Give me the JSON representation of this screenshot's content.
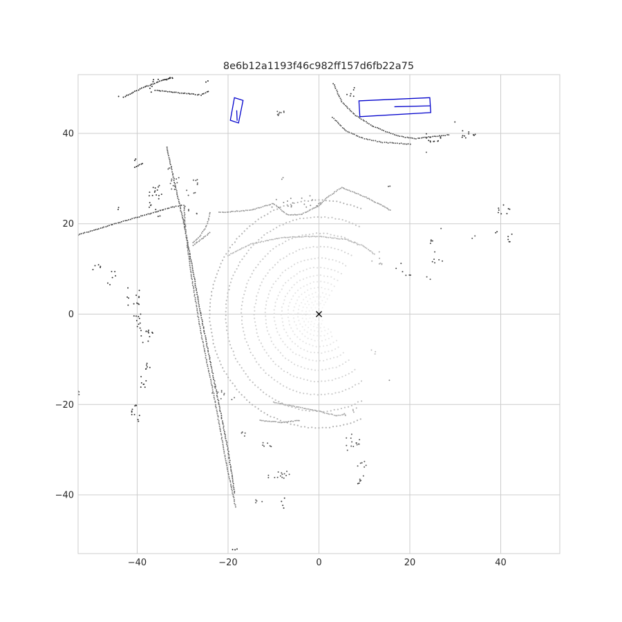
{
  "chart_data": {
    "type": "scatter",
    "title": "8e6b12a1193f46c982ff157d6fb22a75",
    "xlabel": "",
    "ylabel": "",
    "xlim": [
      -53,
      53
    ],
    "ylim": [
      -53,
      53
    ],
    "xticks": [
      -40,
      -20,
      0,
      20,
      40
    ],
    "yticks": [
      -40,
      -20,
      0,
      20,
      40
    ],
    "xtick_labels": [
      "−40",
      "−20",
      "0",
      "20",
      "40"
    ],
    "ytick_labels": [
      "−40",
      "−20",
      "0",
      "20",
      "40"
    ],
    "grid": true,
    "ego_marker": {
      "x": 0,
      "y": 0,
      "symbol": "x"
    },
    "box_color": "#0000cc",
    "boxes": [
      {
        "corners": [
          [
            -18.6,
            47.9
          ],
          [
            -16.7,
            47.3
          ],
          [
            -17.7,
            42.3
          ],
          [
            -19.5,
            42.9
          ]
        ],
        "heading_line": [
          [
            -18.1,
            45.1
          ],
          [
            -18.0,
            42.8
          ]
        ]
      },
      {
        "corners": [
          [
            8.8,
            47.2
          ],
          [
            24.4,
            47.9
          ],
          [
            24.6,
            44.6
          ],
          [
            9.0,
            43.7
          ]
        ],
        "heading_line": [
          [
            16.6,
            45.9
          ],
          [
            24.5,
            46.1
          ]
        ]
      }
    ],
    "rings": [
      {
        "r": 1.5,
        "gray": "#f4f4f4"
      },
      {
        "r": 2.2,
        "gray": "#f2f2f2"
      },
      {
        "r": 2.9,
        "gray": "#f0f0f0"
      },
      {
        "r": 3.7,
        "gray": "#eeeeee"
      },
      {
        "r": 4.6,
        "gray": "#ececec"
      },
      {
        "r": 5.6,
        "gray": "#e9e9e9"
      },
      {
        "r": 6.8,
        "gray": "#e6e6e6"
      },
      {
        "r": 8.2,
        "gray": "#e2e2e2"
      },
      {
        "r": 9.8,
        "gray": "#dedede"
      },
      {
        "r": 11.8,
        "gray": "#d9d9d9"
      },
      {
        "r": 14.2,
        "gray": "#d2d2d2"
      },
      {
        "r": 17.0,
        "gray": "#c9c9c9"
      },
      {
        "r": 20.5,
        "gray": "#bdbdbd"
      },
      {
        "r": 24.0,
        "gray": "#b0b0b0"
      }
    ],
    "ring_arc_deg": [
      60,
      305
    ],
    "ring_max_x": 9.5,
    "far_arcs": [
      {
        "points": [
          [
            -22,
            22.5
          ],
          [
            -15,
            23
          ],
          [
            -10,
            24.5
          ],
          [
            -7,
            22
          ],
          [
            -4,
            22
          ],
          [
            0,
            24
          ],
          [
            2,
            26
          ],
          [
            5,
            28
          ],
          [
            10,
            26
          ],
          [
            14,
            24
          ],
          [
            16,
            22.8
          ]
        ],
        "gray": "#9a9a9a"
      },
      {
        "points": [
          [
            -20,
            13
          ],
          [
            -15,
            15.5
          ],
          [
            -8,
            17
          ],
          [
            0,
            17.2
          ],
          [
            6,
            16.5
          ],
          [
            10,
            15
          ],
          [
            12.5,
            13
          ]
        ],
        "gray": "#b4b4b4"
      },
      {
        "points": [
          [
            -10,
            -19.5
          ],
          [
            -5,
            -20.5
          ],
          [
            0,
            -21.5
          ],
          [
            4,
            -22.5
          ],
          [
            6,
            -22
          ]
        ],
        "gray": "#a8a8a8"
      },
      {
        "points": [
          [
            -13,
            -23.5
          ],
          [
            -8,
            -24
          ],
          [
            -4,
            -23.5
          ]
        ],
        "gray": "#9a9a9a"
      }
    ],
    "polylines": [
      {
        "points": [
          [
            -33.5,
            37
          ],
          [
            -31.5,
            28
          ],
          [
            -29.5,
            19
          ],
          [
            -27.8,
            10
          ],
          [
            -26,
            0
          ],
          [
            -24,
            -10
          ],
          [
            -22,
            -20
          ],
          [
            -20,
            -30
          ],
          [
            -18.5,
            -40
          ]
        ],
        "gray": "#4e4e4e"
      },
      {
        "points": [
          [
            -29.7,
            24
          ],
          [
            -29.4,
            19
          ],
          [
            -28.8,
            14
          ],
          [
            -28,
            8
          ],
          [
            -27,
            2
          ],
          [
            -26,
            -4
          ],
          [
            -24.8,
            -10
          ],
          [
            -23.5,
            -16
          ],
          [
            -22,
            -24
          ],
          [
            -20.6,
            -32
          ],
          [
            -19.3,
            -38
          ],
          [
            -18.3,
            -43
          ]
        ],
        "gray": "#707070"
      },
      {
        "points": [
          [
            -53,
            17.5
          ],
          [
            -45,
            20
          ],
          [
            -38,
            22
          ],
          [
            -33,
            23.5
          ],
          [
            -29.8,
            24.2
          ]
        ],
        "gray": "#444444"
      },
      {
        "points": [
          [
            -24,
            18
          ],
          [
            -28,
            15
          ]
        ],
        "gray": "#888888"
      },
      {
        "points": [
          [
            -24,
            22.5
          ],
          [
            -24.5,
            20
          ],
          [
            -26,
            17.5
          ],
          [
            -28,
            15.5
          ]
        ],
        "gray": "#8a8a8a"
      },
      {
        "points": [
          [
            -43,
            48
          ],
          [
            -39,
            50
          ],
          [
            -35,
            51.5
          ],
          [
            -32,
            52.5
          ]
        ],
        "gray": "#222222"
      },
      {
        "points": [
          [
            -36,
            49.5
          ],
          [
            -31,
            49
          ],
          [
            -26,
            48.5
          ],
          [
            -24,
            49.5
          ]
        ],
        "gray": "#333333"
      },
      {
        "points": [
          [
            3.2,
            51
          ],
          [
            5,
            47
          ],
          [
            8,
            44
          ],
          [
            12,
            41.5
          ],
          [
            17,
            39.5
          ],
          [
            21,
            38.8
          ],
          [
            27,
            39.5
          ],
          [
            29,
            39.7
          ]
        ],
        "gray": "#4a4a4a"
      },
      {
        "points": [
          [
            3,
            43.5
          ],
          [
            6,
            40.5
          ],
          [
            10,
            38.8
          ],
          [
            14,
            38
          ],
          [
            20.5,
            37.6
          ]
        ],
        "gray": "#555555"
      },
      {
        "points": [
          [
            -40.5,
            32.5
          ],
          [
            -38.5,
            33.5
          ]
        ],
        "gray": "#222222"
      },
      {
        "points": [
          [
            -40.5,
            34
          ],
          [
            -40,
            34.5
          ]
        ],
        "gray": "#222222"
      },
      {
        "points": [
          [
            -9,
            44
          ],
          [
            -8.5,
            45
          ]
        ],
        "gray": "#555555"
      }
    ],
    "clusters": [
      {
        "cx": -36,
        "cy": 25,
        "rx": 1.5,
        "ry": 3.5,
        "n": 22,
        "gray": "#333333"
      },
      {
        "cx": -32,
        "cy": 30,
        "rx": 1.5,
        "ry": 2.5,
        "n": 12,
        "gray": "#555555"
      },
      {
        "cx": -28,
        "cy": 26,
        "rx": 1.5,
        "ry": 4.0,
        "n": 14,
        "gray": "#555555"
      },
      {
        "cx": -49,
        "cy": 10.0,
        "rx": 1.0,
        "ry": 1.0,
        "n": 5,
        "gray": "#333333"
      },
      {
        "cx": -45.5,
        "cy": 8,
        "rx": 1.0,
        "ry": 1.5,
        "n": 6,
        "gray": "#333333"
      },
      {
        "cx": -41,
        "cy": 3.5,
        "rx": 1.5,
        "ry": 2.5,
        "n": 12,
        "gray": "#333333"
      },
      {
        "cx": -40,
        "cy": -1.5,
        "rx": 1.0,
        "ry": 1.5,
        "n": 9,
        "gray": "#333333"
      },
      {
        "cx": -38,
        "cy": -4.5,
        "rx": 1.5,
        "ry": 2.5,
        "n": 13,
        "gray": "#333333"
      },
      {
        "cx": -38,
        "cy": -11.5,
        "rx": 1.0,
        "ry": 1.0,
        "n": 6,
        "gray": "#333333"
      },
      {
        "cx": -38.5,
        "cy": -15,
        "rx": 0.8,
        "ry": 1.2,
        "n": 7,
        "gray": "#333333"
      },
      {
        "cx": -40,
        "cy": -22,
        "rx": 1.2,
        "ry": 2.0,
        "n": 11,
        "gray": "#333333"
      },
      {
        "cx": -53,
        "cy": -16.5,
        "rx": 0.4,
        "ry": 1.5,
        "n": 4,
        "gray": "#555555"
      },
      {
        "cx": -21,
        "cy": -17.5,
        "rx": 2.5,
        "ry": 1.5,
        "n": 10,
        "gray": "#6a6a6a"
      },
      {
        "cx": -17,
        "cy": -26.5,
        "rx": 1.0,
        "ry": 0.6,
        "n": 4,
        "gray": "#555555"
      },
      {
        "cx": -12,
        "cy": -29,
        "rx": 1.5,
        "ry": 0.6,
        "n": 6,
        "gray": "#555555"
      },
      {
        "cx": -9,
        "cy": -35.5,
        "rx": 2.5,
        "ry": 1.0,
        "n": 14,
        "gray": "#555555"
      },
      {
        "cx": -13,
        "cy": -41.5,
        "rx": 1.0,
        "ry": 0.4,
        "n": 4,
        "gray": "#555555"
      },
      {
        "cx": -7.5,
        "cy": -42,
        "rx": 1.0,
        "ry": 1.5,
        "n": 4,
        "gray": "#333333"
      },
      {
        "cx": -18.5,
        "cy": -52,
        "rx": 0.8,
        "ry": 0.4,
        "n": 3,
        "gray": "#222222"
      },
      {
        "cx": 7.5,
        "cy": -29,
        "rx": 1.5,
        "ry": 2.5,
        "n": 14,
        "gray": "#555555"
      },
      {
        "cx": 9.5,
        "cy": -33.5,
        "rx": 1.0,
        "ry": 1.0,
        "n": 6,
        "gray": "#555555"
      },
      {
        "cx": 9.5,
        "cy": -36.5,
        "rx": 0.8,
        "ry": 0.8,
        "n": 5,
        "gray": "#555555"
      },
      {
        "cx": 8.5,
        "cy": -37.5,
        "rx": 0.4,
        "ry": 0.3,
        "n": 2,
        "gray": "#333333"
      },
      {
        "cx": 7.0,
        "cy": -21.5,
        "rx": 1.5,
        "ry": 1.0,
        "n": 6,
        "gray": "#aaaaaa"
      },
      {
        "cx": 12,
        "cy": -8.5,
        "rx": 0.6,
        "ry": 0.6,
        "n": 3,
        "gray": "#bbbbbb"
      },
      {
        "cx": 15.5,
        "cy": -14.5,
        "rx": 0.3,
        "ry": 0.3,
        "n": 1,
        "gray": "#888888"
      },
      {
        "cx": 12.5,
        "cy": 12.5,
        "rx": 1.5,
        "ry": 1.5,
        "n": 7,
        "gray": "#aaaaaa"
      },
      {
        "cx": 18.5,
        "cy": 10,
        "rx": 2.0,
        "ry": 1.5,
        "n": 6,
        "gray": "#444444"
      },
      {
        "cx": 26,
        "cy": 14,
        "rx": 1.5,
        "ry": 3.0,
        "n": 10,
        "gray": "#444444"
      },
      {
        "cx": 24,
        "cy": 8,
        "rx": 0.5,
        "ry": 0.5,
        "n": 2,
        "gray": "#555555"
      },
      {
        "cx": 27,
        "cy": 19,
        "rx": 0.3,
        "ry": 0.3,
        "n": 1,
        "gray": "#555555"
      },
      {
        "cx": 34,
        "cy": 17,
        "rx": 0.5,
        "ry": 0.5,
        "n": 2,
        "gray": "#555555"
      },
      {
        "cx": 40.5,
        "cy": 23,
        "rx": 1.5,
        "ry": 1.2,
        "n": 8,
        "gray": "#333333"
      },
      {
        "cx": 42,
        "cy": 17,
        "rx": 0.5,
        "ry": 1.2,
        "n": 5,
        "gray": "#333333"
      },
      {
        "cx": 39,
        "cy": 18,
        "rx": 0.3,
        "ry": 0.3,
        "n": 2,
        "gray": "#333333"
      },
      {
        "cx": 15.5,
        "cy": 28,
        "rx": 0.4,
        "ry": 0.4,
        "n": 2,
        "gray": "#555555"
      },
      {
        "cx": -8,
        "cy": 24.5,
        "rx": 2.5,
        "ry": 1.2,
        "n": 10,
        "gray": "#888888"
      },
      {
        "cx": -2,
        "cy": 25,
        "rx": 2.5,
        "ry": 1.5,
        "n": 10,
        "gray": "#888888"
      },
      {
        "cx": -8,
        "cy": 30,
        "rx": 0.5,
        "ry": 0.3,
        "n": 2,
        "gray": "#888888"
      },
      {
        "cx": 25,
        "cy": 39,
        "rx": 2.0,
        "ry": 1.0,
        "n": 12,
        "gray": "#333333"
      },
      {
        "cx": 33,
        "cy": 40,
        "rx": 1.5,
        "ry": 1.5,
        "n": 10,
        "gray": "#333333"
      },
      {
        "cx": 30,
        "cy": 42.5,
        "rx": 0.4,
        "ry": 0.4,
        "n": 1,
        "gray": "#333333"
      },
      {
        "cx": 23.5,
        "cy": 36,
        "rx": 0.3,
        "ry": 0.3,
        "n": 1,
        "gray": "#555555"
      },
      {
        "cx": -35,
        "cy": 52,
        "rx": 3.0,
        "ry": 0.6,
        "n": 9,
        "gray": "#222222"
      },
      {
        "cx": -37,
        "cy": 49.5,
        "rx": 0.4,
        "ry": 1.0,
        "n": 3,
        "gray": "#222222"
      },
      {
        "cx": -44,
        "cy": 48.5,
        "rx": 0.4,
        "ry": 0.4,
        "n": 1,
        "gray": "#222222"
      },
      {
        "cx": -24.5,
        "cy": 51.5,
        "rx": 0.5,
        "ry": 0.5,
        "n": 2,
        "gray": "#222222"
      },
      {
        "cx": -8.5,
        "cy": 44.5,
        "rx": 1.0,
        "ry": 0.4,
        "n": 5,
        "gray": "#555555"
      },
      {
        "cx": -44,
        "cy": 23.5,
        "rx": 0.3,
        "ry": 0.4,
        "n": 2,
        "gray": "#333333"
      },
      {
        "cx": 7,
        "cy": 49,
        "rx": 1.0,
        "ry": 1.5,
        "n": 6,
        "gray": "#333333"
      }
    ]
  }
}
